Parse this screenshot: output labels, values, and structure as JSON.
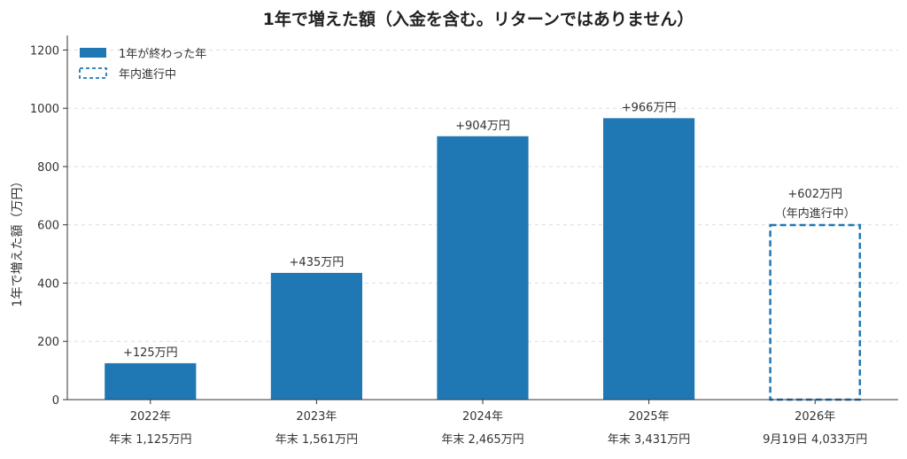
{
  "chart_data": {
    "type": "bar",
    "title": "1年で増えた額（入金を含む。リターンではありません）",
    "ylabel": "1年で増えた額（万円）",
    "xlabel": "",
    "ylim": [
      0,
      1250
    ],
    "yticks": [
      0,
      200,
      400,
      600,
      800,
      1000,
      1200
    ],
    "grid": "horizontal-dashed",
    "legend_position": "top-left",
    "legend": [
      {
        "label": "1年が終わった年",
        "style": "solid",
        "color": "#1f77b4"
      },
      {
        "label": "年内進行中",
        "style": "dashed",
        "color": "#1f77b4"
      }
    ],
    "categories": [
      {
        "year": "2022年",
        "sub": "年末 1,125万円",
        "value": 125,
        "label": "+125万円",
        "note": "",
        "status": "complete"
      },
      {
        "year": "2023年",
        "sub": "年末 1,561万円",
        "value": 435,
        "label": "+435万円",
        "note": "",
        "status": "complete"
      },
      {
        "year": "2024年",
        "sub": "年末 2,465万円",
        "value": 904,
        "label": "+904万円",
        "note": "",
        "status": "complete"
      },
      {
        "year": "2025年",
        "sub": "年末 3,431万円",
        "value": 966,
        "label": "+966万円",
        "note": "",
        "status": "complete"
      },
      {
        "year": "2026年",
        "sub": "9月19日 4,033万円",
        "value": 602,
        "label": "+602万円",
        "note": "（年内進行中）",
        "status": "in-progress"
      }
    ],
    "colors": {
      "bar": "#1f77b4",
      "grid": "#dddddd",
      "axis": "#333333"
    }
  }
}
